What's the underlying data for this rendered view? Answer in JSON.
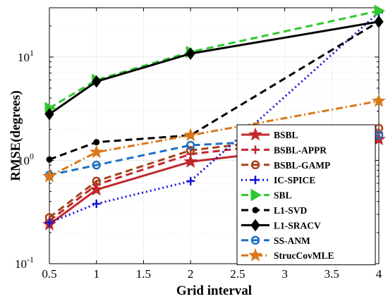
{
  "chart_data": {
    "type": "line",
    "xlabel": "Grid interval",
    "ylabel": "RMSE(degrees)",
    "xlim": [
      0.5,
      4
    ],
    "ylim": [
      0.1,
      30
    ],
    "yscale": "log",
    "grid": true,
    "legend_position": "bottom-right",
    "x": [
      0.5,
      1,
      2,
      4
    ],
    "x_ticks": [
      "0.5",
      "1",
      "1.5",
      "2",
      "2.5",
      "3",
      "3.5",
      "4"
    ],
    "y_ticks": [
      {
        "base": "10",
        "exp": "-1"
      },
      {
        "base": "10",
        "exp": "0"
      },
      {
        "base": "10",
        "exp": "1"
      }
    ],
    "series": [
      {
        "name": "BSBL",
        "color": "#c0282d",
        "style": "solid",
        "marker": "star",
        "values": [
          0.24,
          0.52,
          0.97,
          1.6
        ]
      },
      {
        "name": "BSBL-APPR",
        "color": "#c0282d",
        "style": "dashed",
        "marker": "plus",
        "values": [
          0.26,
          0.58,
          1.15,
          1.85
        ]
      },
      {
        "name": "BSBL-GAMP",
        "color": "#a8421c",
        "style": "dashed",
        "marker": "circle",
        "values": [
          0.28,
          0.63,
          1.25,
          2.05
        ]
      },
      {
        "name": "IC-SPICE",
        "color": "#1515d8",
        "style": "dotted",
        "marker": "plus",
        "values": [
          0.25,
          0.38,
          0.63,
          27
        ]
      },
      {
        "name": "SBL",
        "color": "#2ec82e",
        "style": "dashed",
        "marker": "triangle-right",
        "values": [
          3.2,
          6.0,
          11.2,
          28
        ]
      },
      {
        "name": "L1-SVD",
        "color": "#000000",
        "style": "dashed",
        "marker": "dot",
        "values": [
          1.02,
          1.5,
          1.75,
          22
        ]
      },
      {
        "name": "L1-SRACV",
        "color": "#000000",
        "style": "solid",
        "marker": "diamond",
        "values": [
          2.8,
          5.8,
          10.8,
          22
        ]
      },
      {
        "name": "SS-ANM",
        "color": "#1f6fc2",
        "style": "dashed",
        "marker": "circle",
        "values": [
          0.72,
          0.9,
          1.4,
          1.75
        ]
      },
      {
        "name": "StrucCovMLE",
        "color": "#d9781a",
        "style": "dashdot",
        "marker": "star",
        "values": [
          0.7,
          1.2,
          1.75,
          3.75
        ]
      }
    ]
  }
}
